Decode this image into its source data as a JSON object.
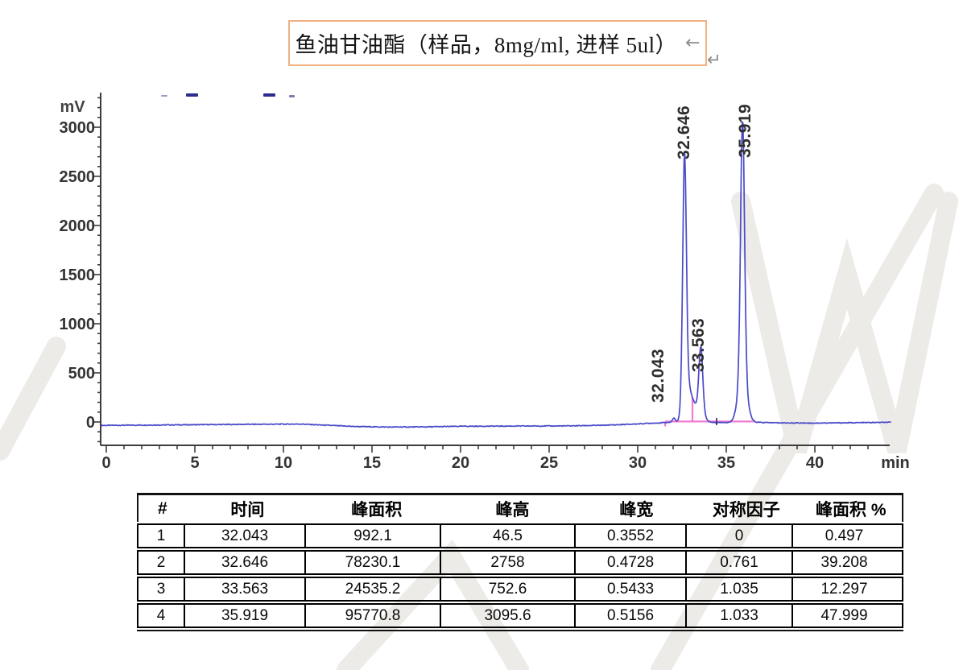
{
  "title_box": {
    "text": "鱼油甘油酯（样品，8mg/ml, 进样  5ul）",
    "paragraph_mark": "←",
    "line_break_mark": "↵",
    "border_color": "#f0b183"
  },
  "chart_data": {
    "type": "line",
    "title": "",
    "xlabel": "min",
    "ylabel": "mV",
    "xlim": [
      -0.3,
      44.3
    ],
    "ylim": [
      -240,
      3340
    ],
    "x_major_ticks": [
      0,
      5,
      10,
      15,
      20,
      25,
      30,
      35,
      40
    ],
    "x_minor_step": 1,
    "y_major_ticks": [
      0,
      500,
      1000,
      1500,
      2000,
      2500,
      3000
    ],
    "y_minor_step": 100,
    "grid": false,
    "legend": "none",
    "trace_color": "#4a4ac9",
    "integration_color": "#f07ccf",
    "axis_color": "#3c3c3c",
    "peaks": [
      {
        "number": 1,
        "retention_min": 32.043,
        "label": "32.043",
        "height_mV": 46.5
      },
      {
        "number": 2,
        "retention_min": 32.646,
        "label": "32.646",
        "height_mV": 2758
      },
      {
        "number": 3,
        "retention_min": 33.563,
        "label": "33.563",
        "height_mV": 752.6
      },
      {
        "number": 4,
        "retention_min": 35.919,
        "label": "35.919",
        "height_mV": 3095.6
      }
    ],
    "integration_baseline": {
      "start_min": 31.55,
      "end_min": 36.6,
      "drop_line_min": 33.09,
      "event_mark_min": 34.45
    }
  },
  "table": {
    "headers": [
      "#",
      "时间",
      "峰面积",
      "峰高",
      "峰宽",
      "对称因子",
      "峰面积 %"
    ],
    "rows": [
      [
        "1",
        "32.043",
        "992.1",
        "46.5",
        "0.3552",
        "0",
        "0.497"
      ],
      [
        "2",
        "32.646",
        "78230.1",
        "2758",
        "0.4728",
        "0.761",
        "39.208"
      ],
      [
        "3",
        "33.563",
        "24535.2",
        "752.6",
        "0.5433",
        "1.035",
        "12.297"
      ],
      [
        "4",
        "35.919",
        "95770.8",
        "3095.6",
        "0.5156",
        "1.033",
        "47.999"
      ]
    ]
  }
}
